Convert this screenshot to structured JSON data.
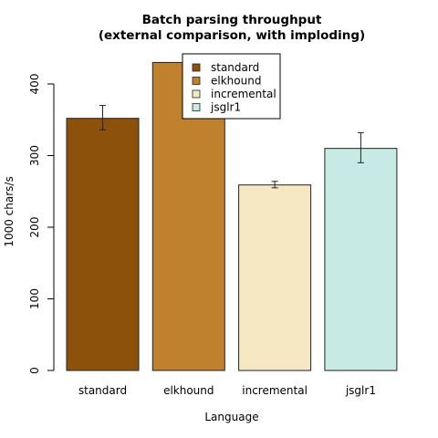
{
  "chart_data": {
    "type": "bar",
    "title_lines": [
      "Batch parsing throughput",
      "(external comparison, with imploding)"
    ],
    "xlabel": "Language",
    "ylabel": "1000 chars/s",
    "ylim": [
      0,
      400
    ],
    "yticks": [
      0,
      100,
      200,
      300,
      400
    ],
    "categories": [
      "standard",
      "elkhound",
      "incremental",
      "jsglr1"
    ],
    "values": [
      352,
      430,
      259,
      310
    ],
    "errors": [
      {
        "low": 336,
        "high": 370
      },
      {
        "low": 425,
        "high": 436
      },
      {
        "low": 255,
        "high": 264
      },
      {
        "low": 290,
        "high": 332
      }
    ],
    "colors": [
      "#8c510a",
      "#bf812d",
      "#f6e8c3",
      "#c7eae5"
    ],
    "grid": false,
    "legend": {
      "placement": "top-center",
      "entries": [
        "standard",
        "elkhound",
        "incremental",
        "jsglr1"
      ]
    }
  }
}
